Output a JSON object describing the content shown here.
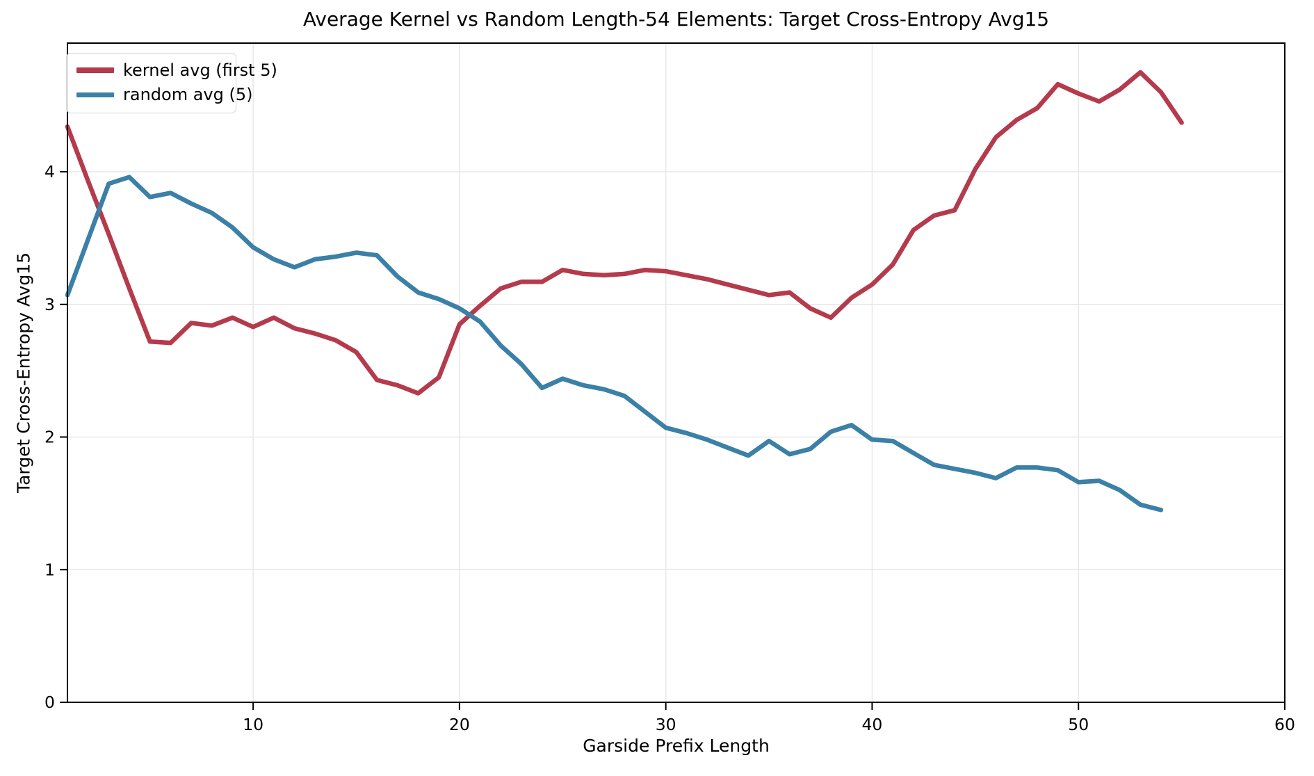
{
  "title": "Average Kernel vs Random Length-54 Elements: Target Cross-Entropy Avg15",
  "chart_data": {
    "type": "line",
    "title": "Average Kernel vs Random Length-54 Elements: Target Cross-Entropy Avg15",
    "xlabel": "Garside Prefix Length",
    "ylabel": "Target Cross-Entropy Avg15",
    "xlim": [
      1,
      60
    ],
    "ylim": [
      0,
      4.97
    ],
    "xticks": [
      10,
      20,
      30,
      40,
      50,
      60
    ],
    "yticks": [
      0,
      1,
      2,
      3,
      4
    ],
    "grid": true,
    "grid_color": "#e7e7e7",
    "legend_position": "upper left",
    "series": [
      {
        "name": "kernel avg (first 5)",
        "color": "#b43a4c",
        "x": [
          1,
          2,
          3,
          4,
          5,
          6,
          7,
          8,
          9,
          10,
          11,
          12,
          13,
          14,
          15,
          16,
          17,
          18,
          19,
          20,
          21,
          22,
          23,
          24,
          25,
          26,
          27,
          28,
          29,
          30,
          31,
          32,
          33,
          34,
          35,
          36,
          37,
          38,
          39,
          40,
          41,
          42,
          43,
          44,
          45,
          46,
          47,
          48,
          49,
          50,
          51,
          52,
          53,
          54,
          55
        ],
        "values": [
          4.34,
          3.93,
          3.53,
          3.12,
          2.72,
          2.71,
          2.86,
          2.84,
          2.9,
          2.83,
          2.9,
          2.82,
          2.78,
          2.73,
          2.64,
          2.43,
          2.39,
          2.33,
          2.45,
          2.85,
          2.99,
          3.12,
          3.17,
          3.17,
          3.26,
          3.23,
          3.22,
          3.23,
          3.26,
          3.25,
          3.22,
          3.19,
          3.15,
          3.11,
          3.07,
          3.09,
          2.97,
          2.9,
          3.05,
          3.15,
          3.3,
          3.56,
          3.67,
          3.71,
          4.02,
          4.26,
          4.39,
          4.48,
          4.66,
          4.59,
          4.53,
          4.62,
          4.75,
          4.6,
          4.37
        ]
      },
      {
        "name": "random avg (5)",
        "color": "#3b80a6",
        "x": [
          1,
          2,
          3,
          4,
          5,
          6,
          7,
          8,
          9,
          10,
          11,
          12,
          13,
          14,
          15,
          16,
          17,
          18,
          19,
          20,
          21,
          22,
          23,
          24,
          25,
          26,
          27,
          28,
          29,
          30,
          31,
          32,
          33,
          34,
          35,
          36,
          37,
          38,
          39,
          40,
          41,
          42,
          43,
          44,
          45,
          46,
          47,
          48,
          49,
          50,
          51,
          52,
          53,
          54
        ],
        "values": [
          3.07,
          3.49,
          3.91,
          3.96,
          3.81,
          3.84,
          3.76,
          3.69,
          3.58,
          3.43,
          3.34,
          3.28,
          3.34,
          3.36,
          3.39,
          3.37,
          3.21,
          3.09,
          3.04,
          2.97,
          2.87,
          2.69,
          2.55,
          2.37,
          2.44,
          2.39,
          2.36,
          2.31,
          2.19,
          2.07,
          2.03,
          1.98,
          1.92,
          1.86,
          1.97,
          1.87,
          1.91,
          2.04,
          2.09,
          1.98,
          1.97,
          1.88,
          1.79,
          1.76,
          1.73,
          1.69,
          1.77,
          1.77,
          1.75,
          1.66,
          1.67,
          1.6,
          1.49,
          1.45
        ]
      }
    ]
  }
}
